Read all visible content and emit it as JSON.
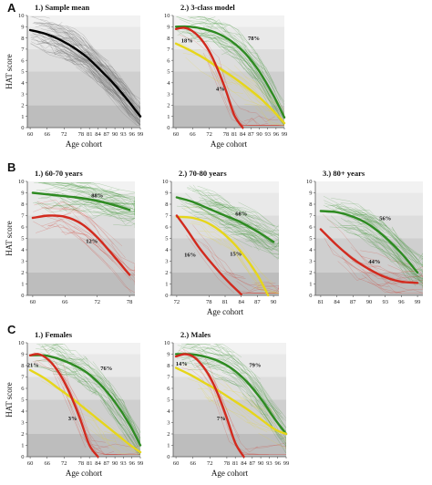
{
  "colors": {
    "class_high": "#2e8b22",
    "class_mid": "#e6d61a",
    "class_low": "#d22a1e",
    "sample_mean": "#000000",
    "individual_lines_sample": "#6e6e6e",
    "band_shades": [
      "#bdbdbd",
      "#cfcfcf",
      "#dddddd",
      "#e9e9e9",
      "#f2f2f2"
    ]
  },
  "chart_data": [
    {
      "id": "A1",
      "type": "line",
      "section": "A",
      "title": "1.) Sample mean",
      "xlabel": "Age cohort",
      "ylabel": "HAT score",
      "xlim": [
        59,
        99
      ],
      "ylim": [
        0,
        10
      ],
      "xticks": [
        60,
        66,
        72,
        78,
        81,
        84,
        87,
        90,
        93,
        96,
        99
      ],
      "yticks": [
        0,
        1,
        2,
        3,
        4,
        5,
        6,
        7,
        8,
        9,
        10
      ],
      "background_lines": "gray",
      "series": [
        {
          "class": "mean",
          "x": [
            60,
            65,
            70,
            75,
            80,
            85,
            90,
            95,
            99
          ],
          "y": [
            8.7,
            8.4,
            7.9,
            7.2,
            6.3,
            5.1,
            3.8,
            2.3,
            1.0
          ]
        }
      ],
      "labels": []
    },
    {
      "id": "A2",
      "type": "line",
      "section": "A",
      "title": "2.) 3-class model",
      "xlabel": "Age cohort",
      "ylabel": "",
      "xlim": [
        59,
        99
      ],
      "ylim": [
        0,
        10
      ],
      "xticks": [
        60,
        66,
        72,
        78,
        81,
        84,
        87,
        90,
        93,
        96,
        99
      ],
      "yticks": [
        0,
        1,
        2,
        3,
        4,
        5,
        6,
        7,
        8,
        9,
        10
      ],
      "background_lines": "color",
      "series": [
        {
          "class": "high",
          "x": [
            60,
            65,
            70,
            75,
            80,
            85,
            90,
            95,
            99
          ],
          "y": [
            9.0,
            9.0,
            8.8,
            8.4,
            7.7,
            6.6,
            5.0,
            2.9,
            0.9
          ]
        },
        {
          "class": "mid",
          "x": [
            60,
            65,
            70,
            75,
            80,
            85,
            90,
            95,
            99
          ],
          "y": [
            7.5,
            6.9,
            6.2,
            5.4,
            4.6,
            3.7,
            2.7,
            1.5,
            0.4
          ]
        },
        {
          "class": "low",
          "x": [
            60,
            63,
            66,
            69,
            72,
            75,
            78,
            81,
            84
          ],
          "y": [
            8.8,
            8.9,
            8.6,
            7.9,
            6.8,
            5.2,
            3.3,
            1.1,
            0.0
          ]
        }
      ],
      "labels": [
        {
          "text": "78%",
          "x": 88,
          "y": 7.8
        },
        {
          "text": "18%",
          "x": 64,
          "y": 7.6
        },
        {
          "text": "4%",
          "x": 76,
          "y": 3.3
        }
      ]
    },
    {
      "id": "B1",
      "type": "line",
      "section": "B",
      "title": "1.) 60-70 years",
      "xlabel": "",
      "ylabel": "HAT score",
      "xlim": [
        59,
        79
      ],
      "ylim": [
        0,
        10
      ],
      "xticks": [
        60,
        66,
        72,
        78
      ],
      "yticks": [
        0,
        1,
        2,
        3,
        4,
        5,
        6,
        7,
        8,
        9,
        10
      ],
      "background_lines": "color",
      "series": [
        {
          "class": "high",
          "x": [
            60,
            64,
            68,
            72,
            76,
            78
          ],
          "y": [
            9.0,
            8.8,
            8.6,
            8.3,
            7.8,
            7.5
          ]
        },
        {
          "class": "low",
          "x": [
            60,
            63,
            66,
            69,
            72,
            75,
            78
          ],
          "y": [
            6.8,
            7.0,
            6.9,
            6.3,
            5.1,
            3.5,
            1.8
          ]
        }
      ],
      "labels": [
        {
          "text": "88%",
          "x": 72,
          "y": 8.6
        },
        {
          "text": "12%",
          "x": 71,
          "y": 4.6
        }
      ]
    },
    {
      "id": "B2",
      "type": "line",
      "section": "B",
      "title": "2.) 70-80 years",
      "xlabel": "Age cohort",
      "ylabel": "",
      "xlim": [
        71,
        91
      ],
      "ylim": [
        0,
        10
      ],
      "xticks": [
        72,
        78,
        81,
        84,
        87,
        90
      ],
      "yticks": [
        0,
        1,
        2,
        3,
        4,
        5,
        6,
        7,
        8,
        9,
        10
      ],
      "background_lines": "color",
      "series": [
        {
          "class": "high",
          "x": [
            72,
            75,
            78,
            81,
            84,
            87,
            90
          ],
          "y": [
            8.6,
            8.2,
            7.6,
            7.0,
            6.4,
            5.6,
            4.7
          ]
        },
        {
          "class": "mid",
          "x": [
            72,
            75,
            78,
            81,
            84,
            87,
            89
          ],
          "y": [
            6.9,
            6.8,
            6.3,
            5.3,
            3.8,
            1.8,
            0.0
          ]
        },
        {
          "class": "low",
          "x": [
            72,
            74,
            76,
            78,
            80,
            82,
            84
          ],
          "y": [
            7.0,
            5.7,
            4.3,
            3.1,
            2.0,
            1.0,
            0.1
          ]
        }
      ],
      "labels": [
        {
          "text": "68%",
          "x": 84,
          "y": 7.0
        },
        {
          "text": "16%",
          "x": 74.5,
          "y": 3.4
        },
        {
          "text": "15%",
          "x": 83,
          "y": 3.5
        }
      ]
    },
    {
      "id": "B3",
      "type": "line",
      "section": "B",
      "title": "3.) 80+ years",
      "xlabel": "",
      "ylabel": "",
      "xlim": [
        80,
        100
      ],
      "ylim": [
        0,
        10
      ],
      "xticks": [
        81,
        84,
        87,
        90,
        93,
        96,
        99
      ],
      "yticks": [
        0,
        1,
        2,
        3,
        4,
        5,
        6,
        7,
        8,
        9,
        10
      ],
      "background_lines": "color",
      "series": [
        {
          "class": "high",
          "x": [
            81,
            84,
            87,
            90,
            93,
            96,
            99
          ],
          "y": [
            7.4,
            7.3,
            6.9,
            6.2,
            5.1,
            3.7,
            2.0
          ]
        },
        {
          "class": "low",
          "x": [
            81,
            84,
            87,
            90,
            93,
            96,
            99
          ],
          "y": [
            5.8,
            4.4,
            3.2,
            2.3,
            1.6,
            1.2,
            1.1
          ]
        }
      ],
      "labels": [
        {
          "text": "56%",
          "x": 93,
          "y": 6.6
        },
        {
          "text": "44%",
          "x": 91,
          "y": 2.8
        }
      ]
    },
    {
      "id": "C1",
      "type": "line",
      "section": "C",
      "title": "1.) Females",
      "xlabel": "Age cohort",
      "ylabel": "HAT score",
      "xlim": [
        59,
        99
      ],
      "ylim": [
        0,
        10
      ],
      "xticks": [
        60,
        66,
        72,
        78,
        81,
        84,
        87,
        90,
        93,
        96,
        99
      ],
      "yticks": [
        0,
        1,
        2,
        3,
        4,
        5,
        6,
        7,
        8,
        9,
        10
      ],
      "background_lines": "color",
      "series": [
        {
          "class": "high",
          "x": [
            60,
            65,
            70,
            75,
            80,
            85,
            90,
            95,
            99
          ],
          "y": [
            8.9,
            8.9,
            8.6,
            8.1,
            7.4,
            6.3,
            4.8,
            2.9,
            1.0
          ]
        },
        {
          "class": "mid",
          "x": [
            60,
            65,
            70,
            75,
            80,
            85,
            90,
            95,
            99
          ],
          "y": [
            7.6,
            6.9,
            6.0,
            5.1,
            4.1,
            3.1,
            2.1,
            1.1,
            0.4
          ]
        },
        {
          "class": "low",
          "x": [
            60,
            63,
            66,
            69,
            72,
            75,
            78,
            81,
            84
          ],
          "y": [
            8.9,
            9.0,
            8.6,
            7.8,
            6.6,
            5.0,
            3.1,
            1.0,
            0.0
          ]
        }
      ],
      "labels": [
        {
          "text": "76%",
          "x": 87,
          "y": 7.6
        },
        {
          "text": "21%",
          "x": 61,
          "y": 7.9
        },
        {
          "text": "3%",
          "x": 75,
          "y": 3.2
        }
      ]
    },
    {
      "id": "C2",
      "type": "line",
      "section": "C",
      "title": "2.) Males",
      "xlabel": "Age cohort",
      "ylabel": "",
      "xlim": [
        59,
        99
      ],
      "ylim": [
        0,
        10
      ],
      "xticks": [
        60,
        66,
        72,
        78,
        81,
        84,
        87,
        90,
        93,
        96,
        99
      ],
      "yticks": [
        0,
        1,
        2,
        3,
        4,
        5,
        6,
        7,
        8,
        9,
        10
      ],
      "background_lines": "color",
      "series": [
        {
          "class": "high",
          "x": [
            60,
            65,
            70,
            75,
            80,
            85,
            90,
            95,
            99
          ],
          "y": [
            9.0,
            9.0,
            8.8,
            8.4,
            7.7,
            6.6,
            5.1,
            3.3,
            2.0
          ]
        },
        {
          "class": "mid",
          "x": [
            60,
            65,
            70,
            75,
            80,
            85,
            90,
            95,
            99
          ],
          "y": [
            7.8,
            7.2,
            6.5,
            5.8,
            5.0,
            4.2,
            3.3,
            2.4,
            2.0
          ]
        },
        {
          "class": "low",
          "x": [
            60,
            63,
            66,
            69,
            72,
            75,
            78,
            81,
            84
          ],
          "y": [
            8.8,
            9.0,
            8.8,
            8.1,
            7.0,
            5.4,
            3.4,
            1.2,
            0.0
          ]
        }
      ],
      "labels": [
        {
          "text": "79%",
          "x": 88,
          "y": 7.9
        },
        {
          "text": "14%",
          "x": 62,
          "y": 8.0
        },
        {
          "text": "7%",
          "x": 76,
          "y": 3.2
        }
      ]
    }
  ],
  "section_letters": [
    "A",
    "B",
    "C"
  ]
}
